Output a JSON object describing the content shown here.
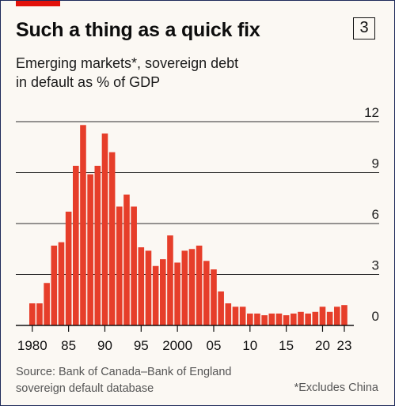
{
  "header": {
    "title": "Such a thing as a quick fix",
    "badge": "3",
    "subtitle": "Emerging markets*, sovereign debt\nin default as % of GDP"
  },
  "footer": {
    "source": "Source: Bank of Canada–Bank of England sovereign default database",
    "note": "*Excludes China"
  },
  "colors": {
    "bar": "#e63e2a",
    "accent": "#e3120b",
    "grid": "#2d2d2d",
    "background": "#fbf8f3"
  },
  "chart_data": {
    "type": "bar",
    "title": "Such a thing as a quick fix",
    "subtitle": "Emerging markets*, sovereign debt in default as % of GDP",
    "categories": [
      "1980",
      "1981",
      "1982",
      "1983",
      "1984",
      "1985",
      "1986",
      "1987",
      "1988",
      "1989",
      "1990",
      "1991",
      "1992",
      "1993",
      "1994",
      "1995",
      "1996",
      "1997",
      "1998",
      "1999",
      "2000",
      "2001",
      "2002",
      "2003",
      "2004",
      "2005",
      "2006",
      "2007",
      "2008",
      "2009",
      "2010",
      "2011",
      "2012",
      "2013",
      "2014",
      "2015",
      "2016",
      "2017",
      "2018",
      "2019",
      "2020",
      "2021",
      "2022",
      "2023"
    ],
    "values": [
      1.3,
      1.3,
      2.5,
      4.7,
      4.9,
      6.7,
      9.4,
      11.8,
      8.9,
      9.4,
      11.3,
      10.2,
      7.0,
      7.7,
      7.0,
      4.6,
      4.4,
      3.5,
      3.9,
      5.3,
      3.7,
      4.4,
      4.5,
      4.7,
      3.8,
      3.3,
      2.0,
      1.3,
      1.1,
      1.1,
      0.7,
      0.7,
      0.6,
      0.7,
      0.7,
      0.6,
      0.7,
      0.8,
      0.7,
      0.8,
      1.1,
      0.8,
      1.1,
      1.2
    ],
    "ylim": [
      0,
      12
    ],
    "yticks": [
      "0",
      "3",
      "6",
      "9",
      "12"
    ],
    "xtick_labels": [
      {
        "year": 1980,
        "label": "1980"
      },
      {
        "year": 1985,
        "label": "85"
      },
      {
        "year": 1990,
        "label": "90"
      },
      {
        "year": 1995,
        "label": "95"
      },
      {
        "year": 2000,
        "label": "2000"
      },
      {
        "year": 2005,
        "label": "05"
      },
      {
        "year": 2010,
        "label": "10"
      },
      {
        "year": 2015,
        "label": "15"
      },
      {
        "year": 2020,
        "label": "20"
      },
      {
        "year": 2023,
        "label": "23"
      }
    ],
    "grid": true,
    "ytick_position": "right"
  }
}
